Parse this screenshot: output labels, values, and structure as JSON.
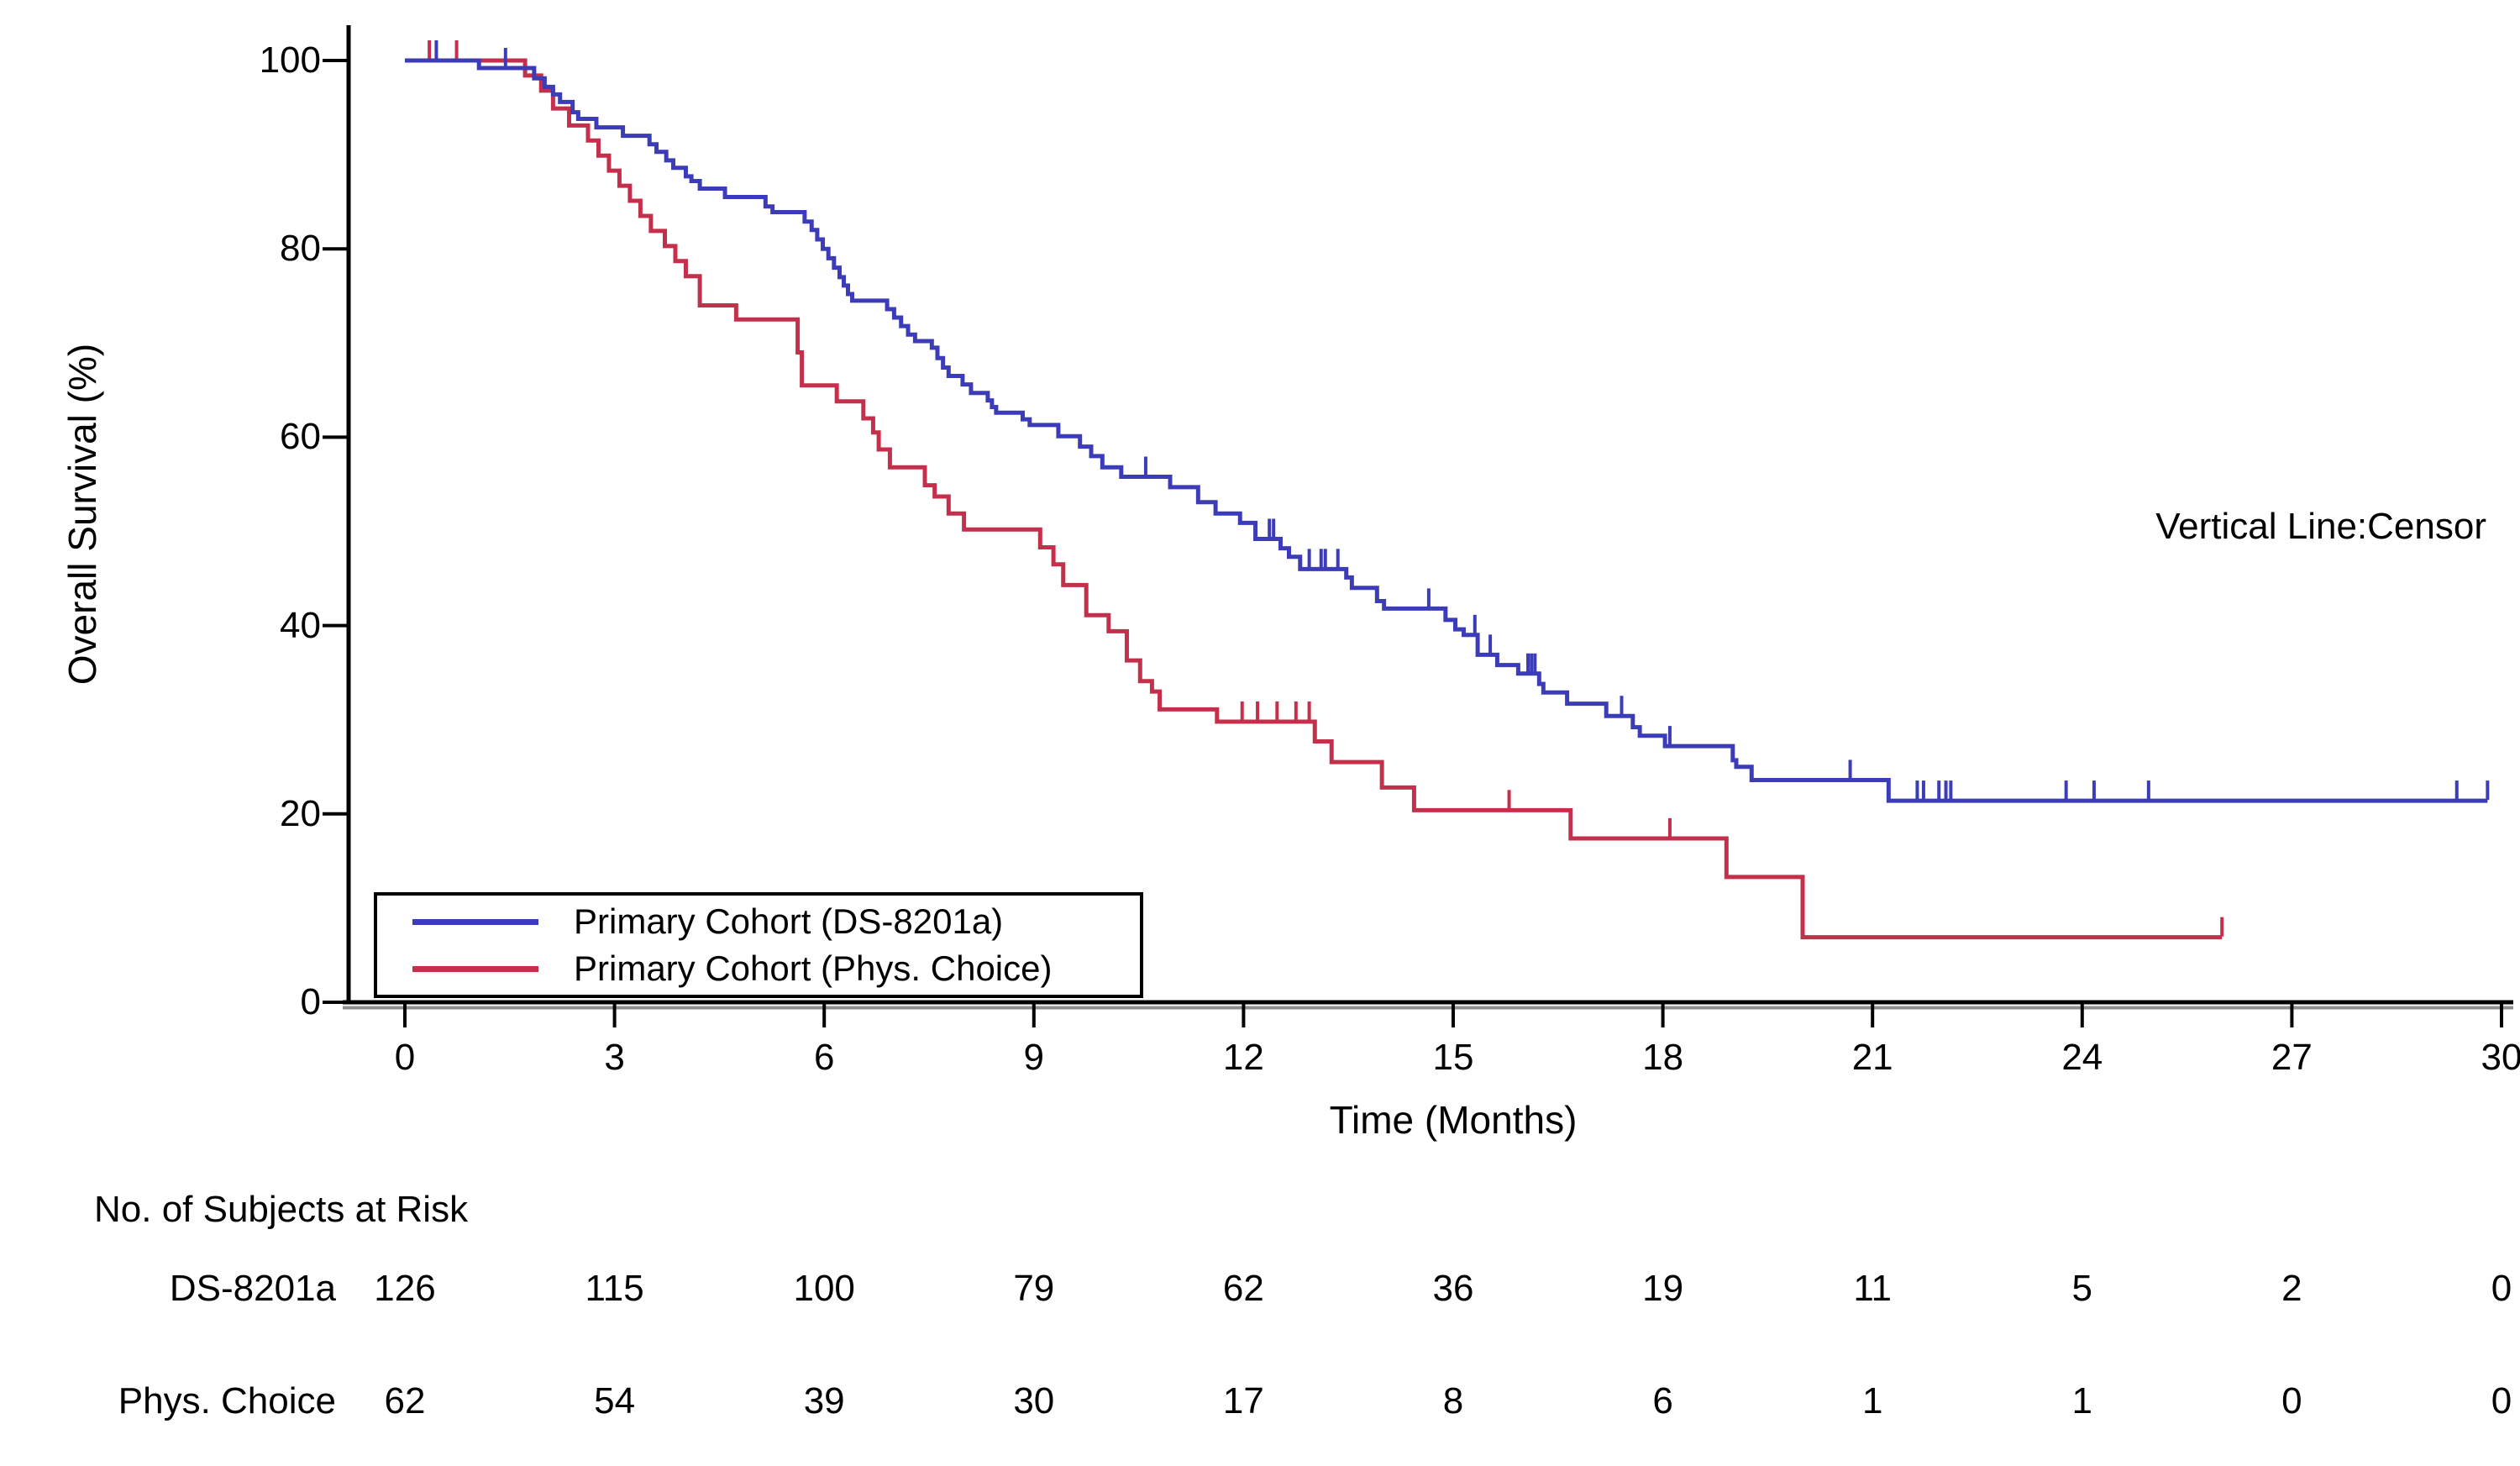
{
  "chart_data": {
    "type": "line",
    "subtype": "kaplan-meier-step",
    "title": "",
    "xlabel": "Time (Months)",
    "ylabel": "Overall Survival (%)",
    "annotation": "Vertical Line:Censor",
    "xlim": [
      0,
      30
    ],
    "ylim": [
      0,
      100
    ],
    "x_ticks": [
      0,
      3,
      6,
      9,
      12,
      15,
      18,
      21,
      24,
      27,
      30
    ],
    "y_ticks": [
      0,
      20,
      40,
      60,
      80,
      100
    ],
    "grid": false,
    "legend_position": "inside-bottom-left",
    "series": [
      {
        "name": "Primary Cohort (DS-8201a)",
        "color": "#3C3CB8",
        "end_time": 29.8,
        "steps": [
          [
            0.0,
            100
          ],
          [
            1.06,
            99.2
          ],
          [
            1.85,
            98.1
          ],
          [
            2.0,
            97.2
          ],
          [
            2.12,
            96.4
          ],
          [
            2.22,
            95.6
          ],
          [
            2.4,
            94.5
          ],
          [
            2.48,
            93.8
          ],
          [
            2.74,
            92.9
          ],
          [
            3.12,
            92.0
          ],
          [
            3.5,
            91.1
          ],
          [
            3.6,
            90.3
          ],
          [
            3.74,
            89.4
          ],
          [
            3.84,
            88.6
          ],
          [
            4.02,
            87.7
          ],
          [
            4.1,
            87.2
          ],
          [
            4.22,
            86.4
          ],
          [
            4.58,
            85.5
          ],
          [
            5.16,
            84.5
          ],
          [
            5.26,
            83.9
          ],
          [
            5.72,
            82.9
          ],
          [
            5.82,
            82.0
          ],
          [
            5.9,
            81.0
          ],
          [
            5.98,
            80.0
          ],
          [
            6.06,
            79.0
          ],
          [
            6.14,
            78.0
          ],
          [
            6.22,
            77.0
          ],
          [
            6.28,
            76.1
          ],
          [
            6.34,
            75.2
          ],
          [
            6.4,
            74.5
          ],
          [
            6.9,
            73.6
          ],
          [
            7.0,
            72.7
          ],
          [
            7.1,
            71.8
          ],
          [
            7.2,
            70.9
          ],
          [
            7.3,
            70.2
          ],
          [
            7.54,
            69.5
          ],
          [
            7.62,
            68.4
          ],
          [
            7.7,
            67.4
          ],
          [
            7.78,
            66.5
          ],
          [
            7.98,
            65.6
          ],
          [
            8.1,
            64.7
          ],
          [
            8.34,
            63.9
          ],
          [
            8.4,
            63.2
          ],
          [
            8.46,
            62.6
          ],
          [
            8.84,
            61.9
          ],
          [
            8.94,
            61.3
          ],
          [
            9.35,
            60.1
          ],
          [
            9.66,
            59.0
          ],
          [
            9.82,
            58.0
          ],
          [
            9.98,
            56.8
          ],
          [
            10.25,
            55.8
          ],
          [
            10.95,
            54.7
          ],
          [
            11.35,
            53.1
          ],
          [
            11.6,
            51.9
          ],
          [
            11.95,
            50.9
          ],
          [
            12.17,
            49.2
          ],
          [
            12.53,
            48.2
          ],
          [
            12.65,
            47.3
          ],
          [
            12.81,
            46.0
          ],
          [
            13.47,
            45.1
          ],
          [
            13.55,
            44.0
          ],
          [
            13.91,
            42.6
          ],
          [
            14.01,
            41.8
          ],
          [
            14.89,
            40.6
          ],
          [
            15.03,
            39.6
          ],
          [
            15.15,
            39.0
          ],
          [
            15.35,
            36.9
          ],
          [
            15.63,
            35.8
          ],
          [
            15.93,
            34.9
          ],
          [
            16.23,
            33.8
          ],
          [
            16.29,
            32.9
          ],
          [
            16.63,
            31.7
          ],
          [
            17.19,
            30.4
          ],
          [
            17.57,
            29.2
          ],
          [
            17.67,
            28.3
          ],
          [
            18.03,
            27.2
          ],
          [
            19.0,
            25.7
          ],
          [
            19.05,
            25.0
          ],
          [
            19.27,
            23.6
          ],
          [
            21.23,
            21.4
          ]
        ],
        "censor_times": [
          0.45,
          1.44,
          10.6,
          12.37,
          12.43,
          12.94,
          13.11,
          13.17,
          13.35,
          14.65,
          15.31,
          15.53,
          16.07,
          16.12,
          16.17,
          17.41,
          18.1,
          20.68,
          21.64,
          21.73,
          21.95,
          22.05,
          22.12,
          23.77,
          24.17,
          24.95,
          29.36,
          29.8
        ]
      },
      {
        "name": "Primary Cohort (Phys. Choice)",
        "color": "#C4304B",
        "end_time": 26.0,
        "steps": [
          [
            0.0,
            100
          ],
          [
            1.72,
            98.4
          ],
          [
            1.95,
            96.8
          ],
          [
            2.12,
            94.9
          ],
          [
            2.35,
            93.1
          ],
          [
            2.62,
            91.5
          ],
          [
            2.77,
            89.9
          ],
          [
            2.92,
            88.3
          ],
          [
            3.07,
            86.7
          ],
          [
            3.22,
            85.1
          ],
          [
            3.37,
            83.5
          ],
          [
            3.52,
            81.9
          ],
          [
            3.72,
            80.3
          ],
          [
            3.87,
            78.7
          ],
          [
            4.02,
            77.1
          ],
          [
            4.22,
            74.0
          ],
          [
            4.74,
            72.5
          ],
          [
            5.62,
            69.0
          ],
          [
            5.68,
            65.5
          ],
          [
            6.18,
            63.8
          ],
          [
            6.56,
            62.0
          ],
          [
            6.7,
            60.5
          ],
          [
            6.78,
            58.7
          ],
          [
            6.94,
            56.8
          ],
          [
            7.44,
            54.9
          ],
          [
            7.58,
            53.7
          ],
          [
            7.78,
            51.9
          ],
          [
            8.0,
            50.2
          ],
          [
            9.09,
            48.3
          ],
          [
            9.28,
            46.5
          ],
          [
            9.42,
            44.3
          ],
          [
            9.75,
            41.1
          ],
          [
            10.07,
            39.4
          ],
          [
            10.33,
            36.3
          ],
          [
            10.52,
            34.1
          ],
          [
            10.69,
            33.0
          ],
          [
            10.8,
            31.1
          ],
          [
            11.62,
            29.8
          ],
          [
            13.02,
            27.7
          ],
          [
            13.26,
            25.5
          ],
          [
            13.98,
            22.8
          ],
          [
            14.44,
            20.4
          ],
          [
            16.68,
            17.4
          ],
          [
            18.91,
            13.3
          ],
          [
            20.0,
            6.9
          ]
        ],
        "censor_times": [
          0.35,
          0.74,
          11.98,
          12.2,
          12.48,
          12.75,
          12.94,
          15.8,
          18.1,
          26.0
        ]
      }
    ],
    "risk_table": {
      "title": "No. of Subjects at Risk",
      "times": [
        0,
        3,
        6,
        9,
        12,
        15,
        18,
        21,
        24,
        27,
        30
      ],
      "rows": [
        {
          "label": "DS-8201a",
          "counts": [
            126,
            115,
            100,
            79,
            62,
            36,
            19,
            11,
            5,
            2,
            0
          ]
        },
        {
          "label": "Phys. Choice",
          "counts": [
            62,
            54,
            39,
            30,
            17,
            8,
            6,
            1,
            1,
            0,
            0
          ]
        }
      ]
    },
    "axis_color": "#000000",
    "axis_shadow_color": "#8f8f8f"
  }
}
